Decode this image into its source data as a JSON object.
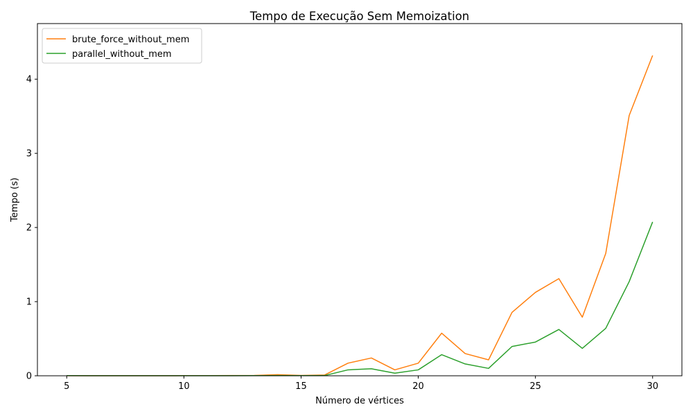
{
  "chart_data": {
    "type": "line",
    "title": "Tempo de Execução Sem Memoization",
    "xlabel": "Número de vértices",
    "ylabel": "Tempo (s)",
    "x": [
      5,
      6,
      7,
      8,
      9,
      10,
      11,
      12,
      13,
      14,
      15,
      16,
      17,
      18,
      19,
      20,
      21,
      22,
      23,
      24,
      25,
      26,
      27,
      28,
      29,
      30
    ],
    "xlim": [
      3.75,
      31.25
    ],
    "ylim": [
      0,
      4.75
    ],
    "xticks": [
      5,
      10,
      15,
      20,
      25,
      30
    ],
    "yticks": [
      0,
      1,
      2,
      3,
      4
    ],
    "grid": false,
    "legend_position": "top-left",
    "series": [
      {
        "name": "brute_force_without_mem",
        "color": "#ff7f0e",
        "values": [
          0.001,
          0.001,
          0.001,
          0.001,
          0.001,
          0.002,
          0.002,
          0.003,
          0.005,
          0.015,
          0.005,
          0.01,
          0.17,
          0.24,
          0.08,
          0.17,
          0.575,
          0.3,
          0.215,
          0.855,
          1.125,
          1.31,
          0.79,
          1.65,
          3.51,
          4.32
        ]
      },
      {
        "name": "parallel_without_mem",
        "color": "#2ca02c",
        "values": [
          0.002,
          0.001,
          0.001,
          0.001,
          0.001,
          0.001,
          0.001,
          0.001,
          0.002,
          0.004,
          0.002,
          0.003,
          0.08,
          0.095,
          0.035,
          0.08,
          0.285,
          0.16,
          0.1,
          0.395,
          0.455,
          0.625,
          0.37,
          0.64,
          1.27,
          2.075
        ]
      }
    ]
  }
}
